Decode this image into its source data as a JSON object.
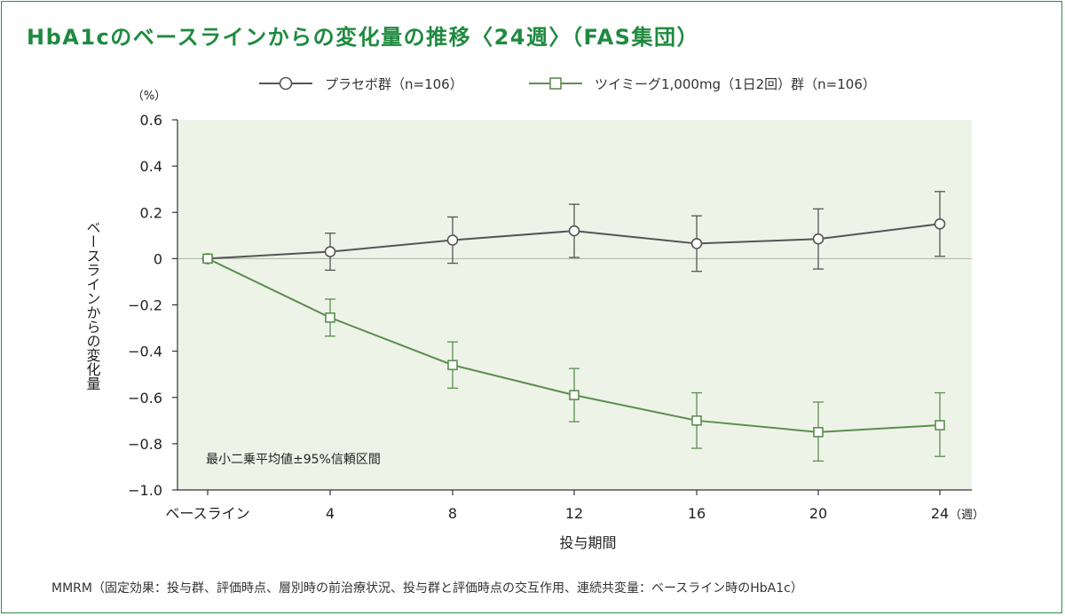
{
  "title": "HbA1cのベースラインからの変化量の推移〈24週〉（FAS集団）",
  "footnote": "MMRM（固定効果：投与群、評価時点、層別時の前治療状況、投与群と評価時点の交互作用、連続共変量：ベースライン時のHbA1c）",
  "colors": {
    "title": "#1f8a3f",
    "placebo": "#555555",
    "active": "#5a8f4e",
    "plot_bg": "#eef3e8",
    "frame": "#2f8a4c"
  },
  "chart_data": {
    "type": "line",
    "title": "HbA1cのベースラインからの変化量の推移〈24週〉（FAS集団）",
    "xlabel": "投与期間",
    "x_unit": "（週）",
    "ylabel": "ベースラインからの変化量",
    "y_unit": "（%）",
    "ylim": [
      -1.0,
      0.6
    ],
    "y_ticks": [
      0.6,
      0.4,
      0.2,
      0,
      -0.2,
      -0.4,
      -0.6,
      -0.8,
      -1.0
    ],
    "y_tick_labels": [
      "0.6",
      "0.4",
      "0.2",
      "0",
      "−0.2",
      "−0.4",
      "−0.6",
      "−0.8",
      "−1.0"
    ],
    "categories": [
      "ベースライン",
      "4",
      "8",
      "12",
      "16",
      "20",
      "24"
    ],
    "annotation": "最小二乗平均値±95%信頼区間",
    "series": [
      {
        "name": "プラセボ群（n=106）",
        "marker": "circle",
        "values": [
          0,
          0.03,
          0.08,
          0.12,
          0.065,
          0.085,
          0.15
        ],
        "ci_low": [
          null,
          -0.05,
          -0.02,
          0.005,
          -0.055,
          -0.045,
          0.01
        ],
        "ci_high": [
          null,
          0.11,
          0.18,
          0.235,
          0.185,
          0.215,
          0.29
        ]
      },
      {
        "name": "ツイミーグ1,000mg（1日2回）群（n=106）",
        "marker": "square",
        "values": [
          0,
          -0.255,
          -0.46,
          -0.59,
          -0.7,
          -0.75,
          -0.72
        ],
        "ci_low": [
          null,
          -0.335,
          -0.56,
          -0.705,
          -0.82,
          -0.875,
          -0.855
        ],
        "ci_high": [
          null,
          -0.175,
          -0.36,
          -0.475,
          -0.58,
          -0.62,
          -0.58
        ]
      }
    ]
  }
}
